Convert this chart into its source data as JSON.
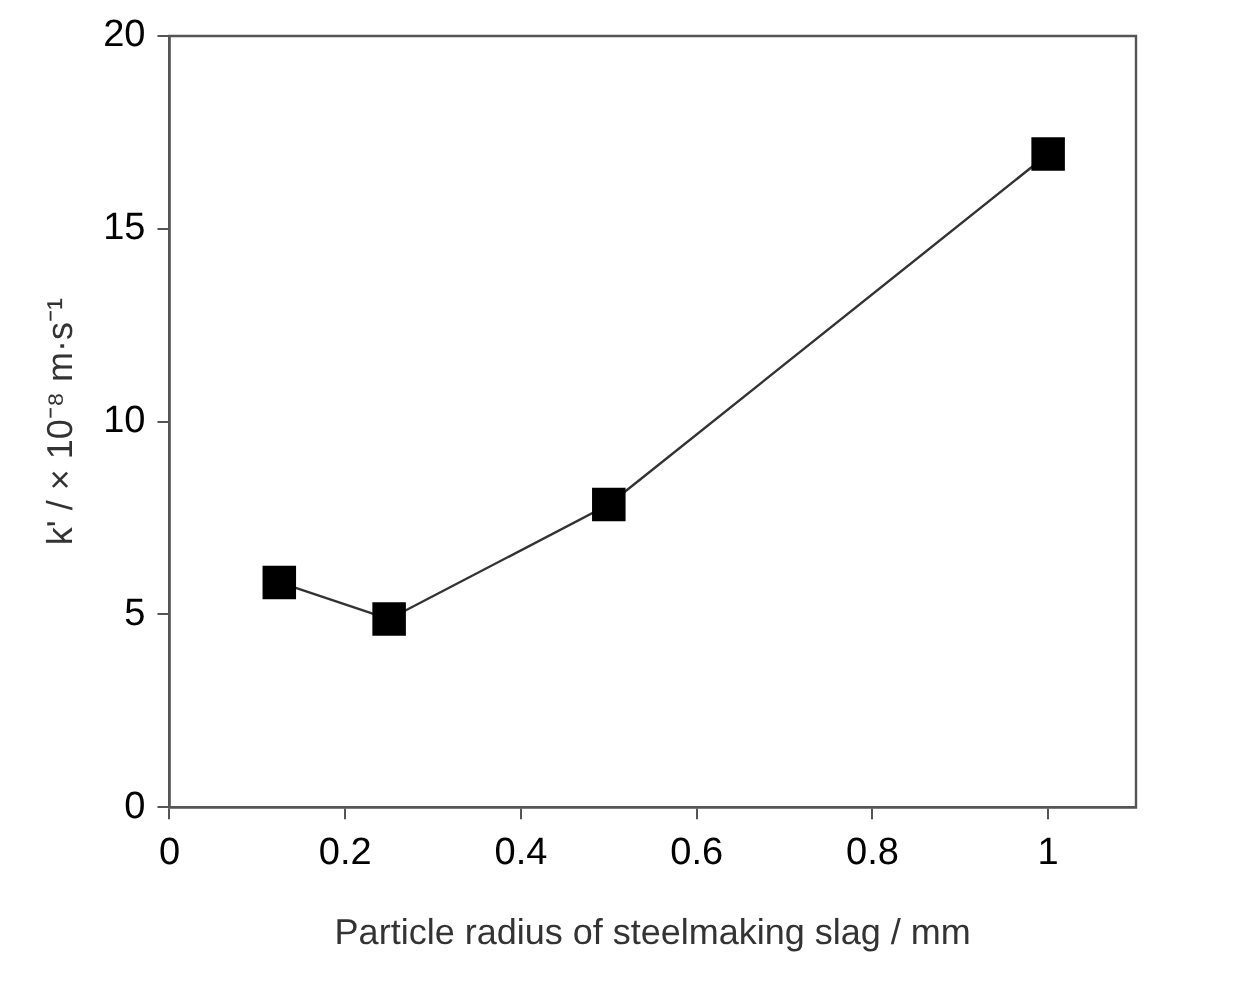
{
  "chart_data": {
    "type": "line",
    "xlabel": "Particle radius of steelmaking slag / mm",
    "ylabel": "k' / × 10⁻⁸ m·s⁻¹",
    "x": [
      0.125,
      0.25,
      0.5,
      1
    ],
    "series": [
      {
        "color": "#000000",
        "values": [
          5.83,
          4.88,
          7.85,
          16.94
        ]
      }
    ],
    "xlim": [
      0,
      1.1
    ],
    "xticks": [
      0,
      0.2,
      0.4,
      0.6,
      0.8,
      1
    ],
    "ylim": [
      0,
      20
    ],
    "yticks": [
      0,
      5,
      10,
      15,
      20
    ],
    "grid": false,
    "legend": false,
    "marker": "square",
    "line_style": "solid"
  }
}
